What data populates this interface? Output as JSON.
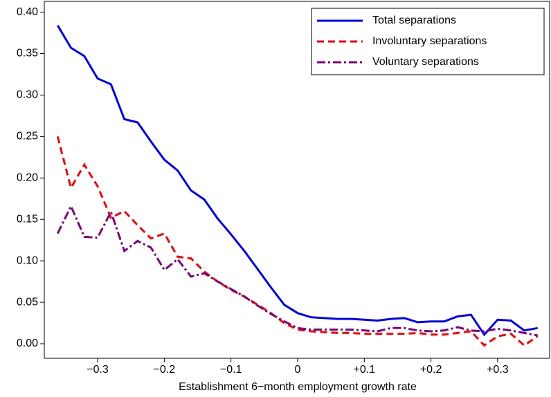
{
  "chart_data": {
    "type": "line",
    "x_label": "Establishment 6−month employment growth rate",
    "x": [
      -0.36,
      -0.34,
      -0.32,
      -0.3,
      -0.28,
      -0.26,
      -0.24,
      -0.22,
      -0.2,
      -0.18,
      -0.16,
      -0.14,
      -0.12,
      -0.1,
      -0.08,
      -0.06,
      -0.04,
      -0.02,
      0,
      0.02,
      0.04,
      0.06,
      0.08,
      0.1,
      0.12,
      0.14,
      0.16,
      0.18,
      0.2,
      0.22,
      0.24,
      0.26,
      0.28,
      0.3,
      0.32,
      0.34,
      0.36
    ],
    "series": [
      {
        "name": "Total separations",
        "color": "#0000ff",
        "linestyle": "solid",
        "values": [
          0.384,
          0.357,
          0.347,
          0.32,
          0.313,
          0.271,
          0.267,
          0.244,
          0.222,
          0.209,
          0.185,
          0.174,
          0.151,
          0.132,
          0.112,
          0.09,
          0.068,
          0.047,
          0.037,
          0.032,
          0.031,
          0.03,
          0.03,
          0.029,
          0.028,
          0.03,
          0.031,
          0.026,
          0.027,
          0.027,
          0.033,
          0.035,
          0.011,
          0.029,
          0.028,
          0.016,
          0.019
        ]
      },
      {
        "name": "Involuntary separations",
        "color": "#ff0000",
        "linestyle": "dashed",
        "values": [
          0.25,
          0.188,
          0.216,
          0.19,
          0.152,
          0.16,
          0.143,
          0.127,
          0.133,
          0.105,
          0.103,
          0.087,
          0.075,
          0.065,
          0.057,
          0.047,
          0.037,
          0.025,
          0.017,
          0.015,
          0.014,
          0.013,
          0.013,
          0.012,
          0.012,
          0.012,
          0.012,
          0.013,
          0.011,
          0.011,
          0.013,
          0.015,
          -0.002,
          0.009,
          0.012,
          -0.002,
          0.009
        ]
      },
      {
        "name": "Voluntary separations",
        "color": "#800080",
        "linestyle": "dashdot",
        "values": [
          0.133,
          0.166,
          0.129,
          0.128,
          0.159,
          0.112,
          0.124,
          0.116,
          0.089,
          0.102,
          0.081,
          0.085,
          0.075,
          0.066,
          0.057,
          0.046,
          0.036,
          0.027,
          0.019,
          0.017,
          0.017,
          0.017,
          0.017,
          0.016,
          0.015,
          0.019,
          0.019,
          0.016,
          0.015,
          0.016,
          0.02,
          0.016,
          0.015,
          0.018,
          0.016,
          0.013,
          0.01
        ]
      }
    ],
    "xlim": [
      -0.38,
      0.378
    ],
    "ylim": [
      -0.0175,
      0.413
    ],
    "xticks": [
      {
        "value": -0.3,
        "label": "−0.3"
      },
      {
        "value": -0.2,
        "label": "−0.2"
      },
      {
        "value": -0.1,
        "label": "−0.1"
      },
      0,
      {
        "value": 0.1,
        "label": "+0.1"
      },
      {
        "value": 0.2,
        "label": "+0.2"
      },
      {
        "value": 0.3,
        "label": "+0.3"
      }
    ],
    "yticks": [
      {
        "value": 0,
        "label": "0.00"
      },
      {
        "value": 0.05,
        "label": "0.05"
      },
      {
        "value": 0.1,
        "label": "0.10"
      },
      {
        "value": 0.15,
        "label": "0.15"
      },
      {
        "value": 0.2,
        "label": "0.20"
      },
      {
        "value": 0.25,
        "label": "0.25"
      },
      {
        "value": 0.3,
        "label": "0.30"
      },
      {
        "value": 0.35,
        "label": "0.35"
      },
      {
        "value": 0.4,
        "label": "0.40"
      }
    ],
    "legend": "upper right"
  }
}
